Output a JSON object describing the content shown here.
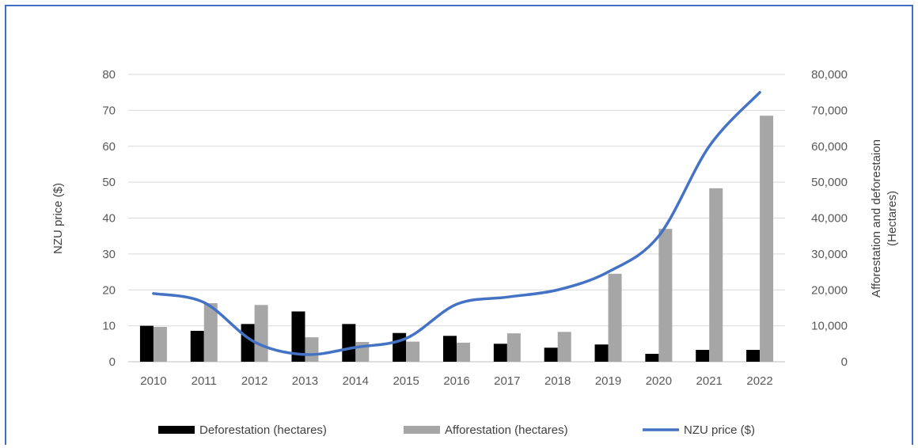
{
  "chart_data": {
    "type": "bar",
    "categories": [
      "2010",
      "2011",
      "2012",
      "2013",
      "2014",
      "2015",
      "2016",
      "2017",
      "2018",
      "2019",
      "2020",
      "2021",
      "2022"
    ],
    "series": [
      {
        "name": "Deforestation (hectares)",
        "kind": "bar",
        "axis": "right",
        "color": "#000000",
        "values": [
          10000,
          8600,
          10500,
          14000,
          10500,
          8000,
          7200,
          5000,
          3900,
          4800,
          2200,
          3300,
          3300
        ]
      },
      {
        "name": "Afforestation (hectares)",
        "kind": "bar",
        "axis": "right",
        "color": "#a6a6a6",
        "values": [
          9700,
          16300,
          15800,
          6800,
          5500,
          5600,
          5300,
          7900,
          8300,
          24500,
          37000,
          48300,
          68500
        ]
      },
      {
        "name": "NZU price ($)",
        "kind": "line",
        "axis": "left",
        "color": "#4472c4",
        "values": [
          19,
          16.5,
          5.5,
          2,
          4,
          6.5,
          16,
          18,
          20,
          25,
          35,
          60,
          75
        ]
      }
    ],
    "ylabel": "NZU price ($)",
    "ylabel_right": [
      "Afforestation and deforestaion",
      "(Hectares)"
    ],
    "ylim": [
      0,
      80
    ],
    "ylim_right": [
      0,
      80000
    ],
    "yticks": [
      "0",
      "10",
      "20",
      "30",
      "40",
      "50",
      "60",
      "70",
      "80"
    ],
    "yticks_right": [
      "0",
      "10,000",
      "20,000",
      "30,000",
      "40,000",
      "50,000",
      "60,000",
      "70,000",
      "80,000"
    ],
    "grid": true,
    "legend_position": "bottom"
  }
}
